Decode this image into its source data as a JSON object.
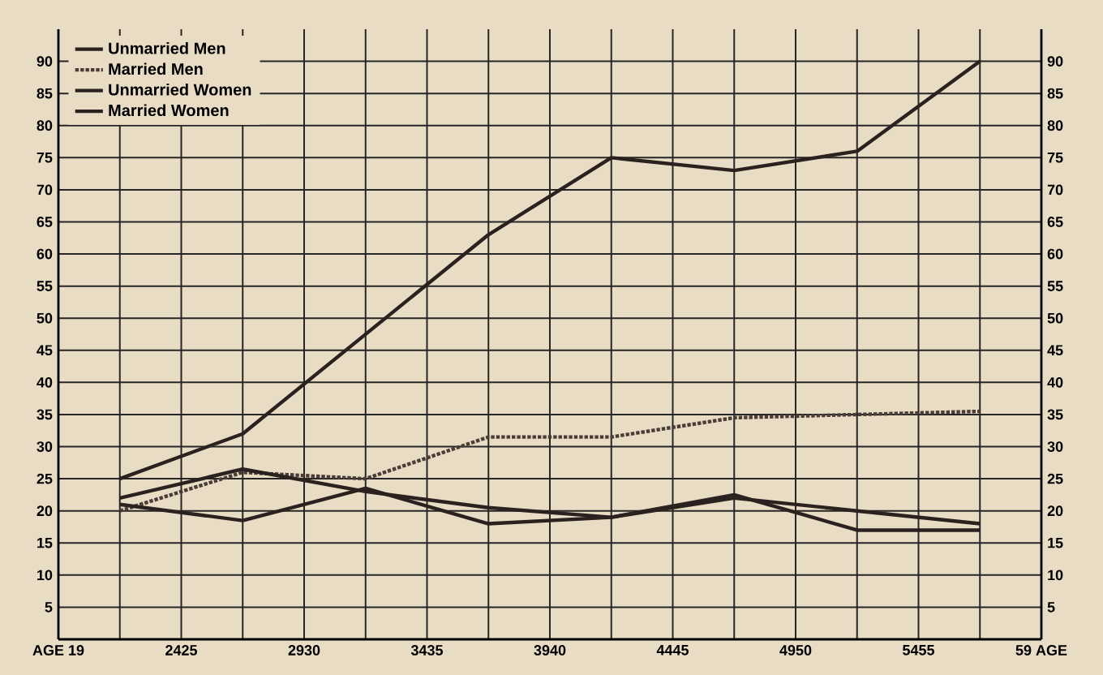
{
  "chart_data": {
    "type": "line",
    "categories": [
      "AGE 19",
      null,
      "2425",
      null,
      "2930",
      null,
      "3435",
      null,
      "3940",
      null,
      "4445",
      null,
      "4950",
      null,
      "5455",
      null,
      "59 AGE"
    ],
    "ylim": [
      0,
      95
    ],
    "yticks": [
      5,
      10,
      15,
      20,
      25,
      30,
      35,
      40,
      45,
      50,
      55,
      60,
      65,
      70,
      75,
      80,
      85,
      90
    ],
    "y2lim": [
      0,
      95
    ],
    "y2ticks": [
      5,
      10,
      15,
      20,
      25,
      30,
      35,
      40,
      45,
      50,
      55,
      60,
      65,
      70,
      75,
      80,
      85,
      90
    ],
    "grid": true,
    "legend": "top left",
    "series": [
      {
        "name": "Unmarried Men",
        "color": "#2b2220",
        "line_style": "solid",
        "values": [
          null,
          25,
          null,
          32,
          null,
          47.5,
          null,
          63,
          null,
          75,
          null,
          73,
          null,
          76,
          null,
          90,
          null
        ]
      },
      {
        "name": "Married Men",
        "color": "#4a3d38",
        "line_style": "dotted",
        "values": [
          null,
          20,
          null,
          26,
          null,
          25,
          null,
          31.5,
          null,
          31.5,
          null,
          34.5,
          null,
          35,
          null,
          35.5,
          null
        ]
      },
      {
        "name": "Unmarried Women",
        "color": "#2b2220",
        "line_style": "solid",
        "values": [
          null,
          22,
          null,
          26.5,
          null,
          23,
          null,
          20.5,
          null,
          19,
          null,
          22,
          null,
          20,
          null,
          18,
          null
        ]
      },
      {
        "name": "Married Women",
        "color": "#2b2220",
        "line_style": "solid",
        "values": [
          null,
          21,
          null,
          18.5,
          null,
          23.5,
          null,
          18,
          null,
          19,
          null,
          22.5,
          null,
          17,
          null,
          17,
          null
        ]
      }
    ]
  }
}
